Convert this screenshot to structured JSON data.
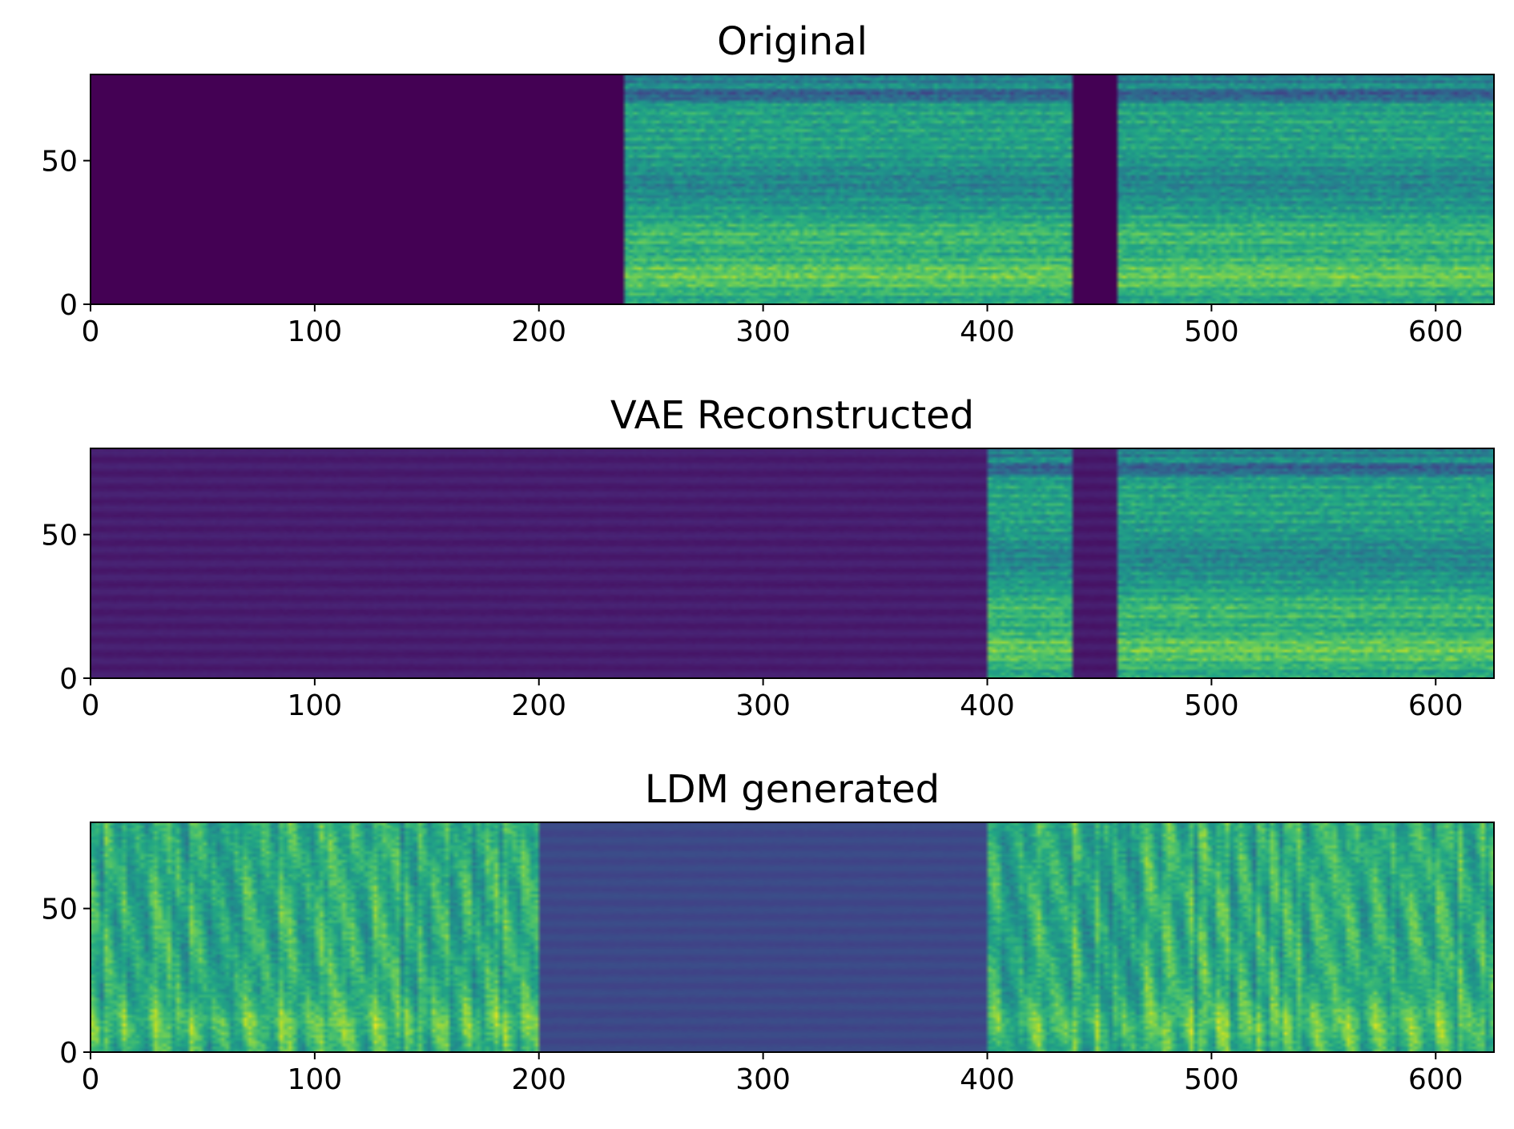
{
  "chart_data": [
    {
      "type": "heatmap",
      "title": "Original",
      "xlim": [
        0,
        626
      ],
      "ylim": [
        0,
        80
      ],
      "xticks": [
        0,
        100,
        200,
        300,
        400,
        500,
        600
      ],
      "yticks": [
        0,
        50
      ],
      "colormap": "viridis",
      "segments": [
        {
          "x_start": 0,
          "x_end": 239,
          "kind": "silence",
          "level": 0.0
        },
        {
          "x_start": 239,
          "x_end": 438,
          "kind": "speech",
          "level": 0.58
        },
        {
          "x_start": 438,
          "x_end": 459,
          "kind": "silence",
          "level": 0.0
        },
        {
          "x_start": 459,
          "x_end": 626,
          "kind": "speech",
          "level": 0.58
        }
      ]
    },
    {
      "type": "heatmap",
      "title": "VAE Reconstructed",
      "xlim": [
        0,
        626
      ],
      "ylim": [
        0,
        80
      ],
      "xticks": [
        0,
        100,
        200,
        300,
        400,
        500,
        600
      ],
      "yticks": [
        0,
        50
      ],
      "colormap": "viridis",
      "segments": [
        {
          "x_start": 0,
          "x_end": 400,
          "kind": "flat",
          "level": 0.08
        },
        {
          "x_start": 400,
          "x_end": 438,
          "kind": "speech",
          "level": 0.58
        },
        {
          "x_start": 438,
          "x_end": 459,
          "kind": "flat",
          "level": 0.07
        },
        {
          "x_start": 459,
          "x_end": 626,
          "kind": "speech",
          "level": 0.58
        }
      ]
    },
    {
      "type": "heatmap",
      "title": "LDM generated",
      "xlim": [
        0,
        626
      ],
      "ylim": [
        0,
        80
      ],
      "xticks": [
        0,
        100,
        200,
        300,
        400,
        500,
        600
      ],
      "yticks": [
        0,
        50
      ],
      "colormap": "viridis",
      "segments": [
        {
          "x_start": 0,
          "x_end": 200,
          "kind": "noise",
          "level": 0.62
        },
        {
          "x_start": 200,
          "x_end": 400,
          "kind": "flat",
          "level": 0.22
        },
        {
          "x_start": 400,
          "x_end": 626,
          "kind": "noise",
          "level": 0.62
        }
      ]
    }
  ]
}
